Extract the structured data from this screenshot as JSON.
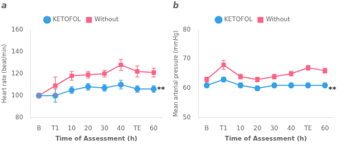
{
  "chart_data": [
    {
      "type": "line",
      "title": "a",
      "x_label": "Time of Assessment (h)",
      "y_label": "Heart rate (beat/min)",
      "categories": [
        "B",
        "T1",
        "10",
        "20",
        "30",
        "40",
        "TE",
        "60"
      ],
      "series": [
        {
          "name": "KETOFOL",
          "marker": "circle",
          "values": [
            100,
            100,
            105,
            108,
            107,
            110,
            106,
            106
          ],
          "errors": [
            2,
            6,
            3,
            3,
            3,
            4,
            3,
            3
          ]
        },
        {
          "name": "Without",
          "marker": "square",
          "values": [
            100,
            109,
            118,
            119,
            120,
            128,
            122,
            121
          ],
          "errors": [
            2,
            8,
            4,
            3,
            3,
            5,
            5,
            4
          ]
        }
      ],
      "ylim": [
        80,
        160
      ],
      "yticks": [
        80,
        100,
        120,
        140,
        160
      ],
      "grid": false,
      "legend": "top",
      "annotations": [
        {
          "text": "**",
          "y": 105
        }
      ]
    },
    {
      "type": "line",
      "title": "b",
      "x_label": "Time of Assessment (h)",
      "y_label": "Mean arterial pressure (mmHg)",
      "categories": [
        "B",
        "T1",
        "10",
        "20",
        "30",
        "40",
        "TE",
        "60"
      ],
      "series": [
        {
          "name": "KETOFOL",
          "marker": "circle",
          "values": [
            61,
            63,
            61,
            60,
            61,
            61,
            61,
            61
          ],
          "errors": [
            0.8,
            0.8,
            0.8,
            0.8,
            0.8,
            0.8,
            0.8,
            0.8
          ]
        },
        {
          "name": "Without",
          "marker": "square",
          "values": [
            63,
            68,
            64,
            63,
            64,
            65,
            67,
            66
          ],
          "errors": [
            0.8,
            1.5,
            0.8,
            0.8,
            0.8,
            0.8,
            0.8,
            0.8
          ]
        }
      ],
      "ylim": [
        50,
        80
      ],
      "yticks": [
        50,
        60,
        70,
        80
      ],
      "grid": false,
      "legend": "top",
      "annotations": [
        {
          "text": "**",
          "y": 59.5
        }
      ]
    }
  ]
}
